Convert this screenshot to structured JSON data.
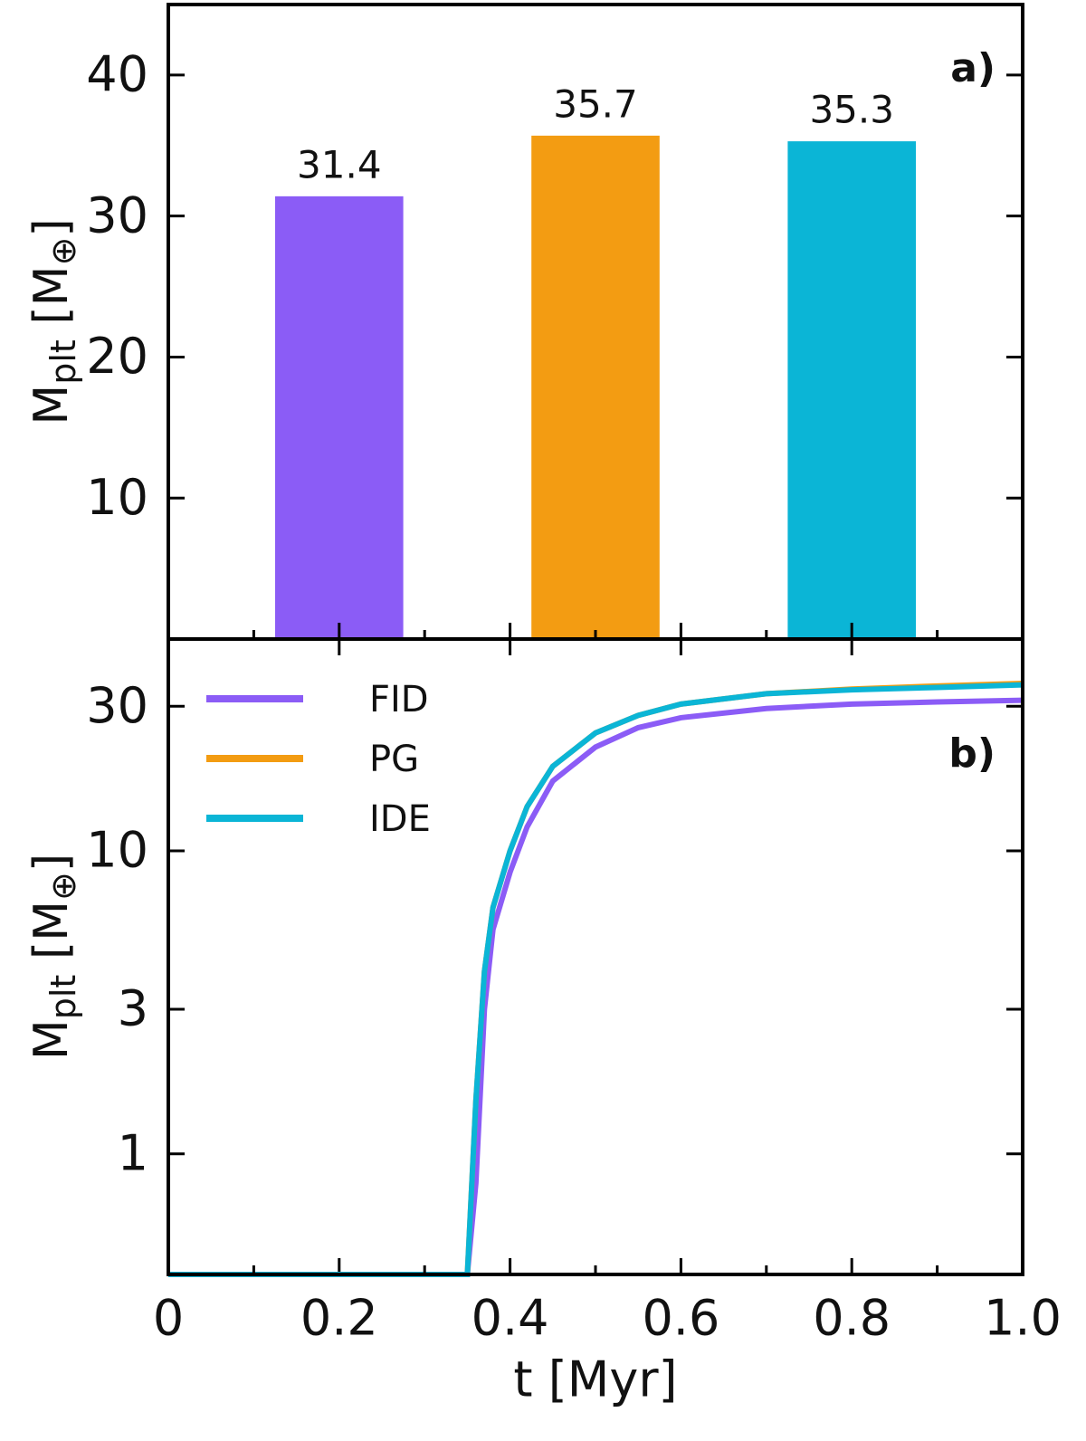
{
  "chart_data": [
    {
      "type": "bar",
      "annotation": "a)",
      "ylabel": [
        "M",
        "plt",
        " [M",
        "⊕",
        "]"
      ],
      "categories": [
        null,
        null,
        null
      ],
      "x": [
        0.2,
        0.5,
        0.8
      ],
      "values": [
        31.4,
        35.7,
        35.3
      ],
      "colors": [
        "#8b5cf6",
        "#f39c12",
        "#0bb5d6"
      ],
      "xlim": [
        0,
        1
      ],
      "ylim": [
        0,
        45
      ],
      "yticks": [
        10,
        20,
        30,
        40
      ]
    },
    {
      "type": "line",
      "annotation": "b)",
      "log_y": true,
      "legend": "upper left",
      "ylabel": [
        "M",
        "plt",
        " [M",
        "⊕",
        "]"
      ],
      "xlabel": "t [Myr]",
      "x": [
        0,
        0.35,
        0.36,
        0.37,
        0.38,
        0.4,
        0.42,
        0.45,
        0.5,
        0.55,
        0.6,
        0.7,
        0.8,
        0.9,
        1.0
      ],
      "series": [
        {
          "name": "FID",
          "color": "#8b5cf6",
          "values": [
            0.4,
            0.4,
            0.8,
            3,
            5.5,
            8.5,
            12,
            17,
            22,
            25.5,
            27.5,
            29.5,
            30.5,
            31,
            31.4
          ]
        },
        {
          "name": "PG",
          "color": "#f39c12",
          "values": [
            0.4,
            0.4,
            1.5,
            4,
            6.5,
            10,
            14,
            19,
            24.5,
            28,
            30.5,
            33,
            34.2,
            35,
            35.7
          ]
        },
        {
          "name": "IDE",
          "color": "#0bb5d6",
          "values": [
            0.4,
            0.4,
            1.5,
            4,
            6.5,
            10,
            14,
            19,
            24.5,
            28,
            30.5,
            33,
            34,
            34.6,
            35.3
          ]
        }
      ],
      "xlim": [
        0,
        1
      ],
      "xticks": [
        0,
        0.2,
        0.4,
        0.6,
        0.8,
        {
          "value": 1,
          "label": "1.0"
        }
      ],
      "ylim": [
        0.4,
        50
      ],
      "yticks": [
        1,
        3,
        10,
        30
      ]
    }
  ]
}
